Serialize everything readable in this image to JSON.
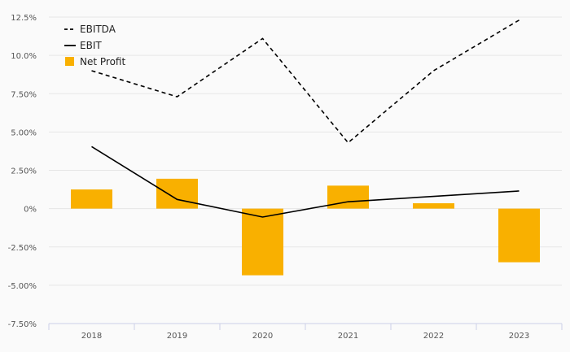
{
  "chart_data": {
    "type": "bar",
    "categories": [
      "2018",
      "2019",
      "2020",
      "2021",
      "2022",
      "2023"
    ],
    "ylim": [
      -7.5,
      12.5
    ],
    "yticks": [
      12.5,
      10.0,
      7.5,
      5.0,
      2.5,
      0,
      -2.5,
      -5.0,
      -7.5
    ],
    "ytick_labels": [
      "12.5%",
      "10.0%",
      "7.50%",
      "5.00%",
      "2.50%",
      "0%",
      "-2.50%",
      "-5.00%",
      "-7.50%"
    ],
    "grid": true,
    "legend_position": "top-left",
    "series": [
      {
        "name": "EBITDA",
        "type": "line",
        "style": "dashed",
        "color": "#000000",
        "values": [
          9.0,
          7.3,
          11.1,
          4.3,
          9.0,
          12.3
        ]
      },
      {
        "name": "EBIT",
        "type": "line",
        "style": "solid",
        "color": "#000000",
        "values": [
          4.05,
          0.6,
          -0.55,
          0.45,
          0.8,
          1.15
        ]
      },
      {
        "name": "Net Profit",
        "type": "bar",
        "color": "#f9b000",
        "values": [
          1.25,
          1.95,
          -4.35,
          1.5,
          0.35,
          -3.5
        ]
      }
    ]
  }
}
